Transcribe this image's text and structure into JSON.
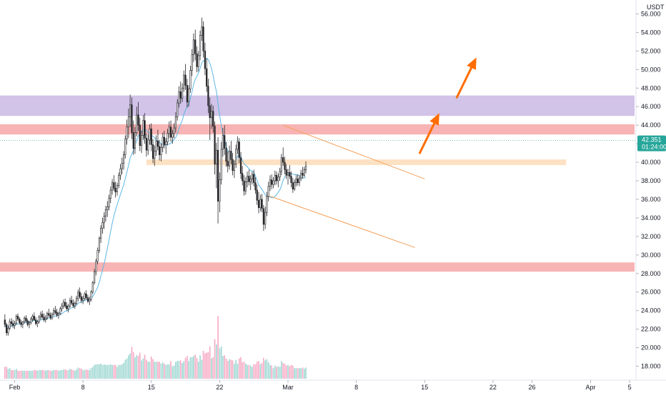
{
  "chart_data": {
    "type": "candlestick",
    "quote_unit": "USDT",
    "ylim": [
      16.5,
      57.5
    ],
    "x_range_days": [
      -0.5,
      64.5
    ],
    "grid": false,
    "colors": {
      "up": "#ffffff",
      "down": "#26262a",
      "wick": "#26262a",
      "ma_line": "#5db7e3",
      "volume_up": "#80cbc4",
      "volume_down": "#f48fb1",
      "resistance_zone": "#d2c3e8",
      "red_zone": "#f8b4b4",
      "support_zone": "#fde1c3",
      "trendline": "#f5a05a",
      "arrow": "#ff6d00",
      "price_badge": "#26a69a"
    },
    "y_ticks": [
      "18.000",
      "20.000",
      "22.000",
      "24.000",
      "26.000",
      "28.000",
      "30.000",
      "32.000",
      "34.000",
      "36.000",
      "38.000",
      "40.000",
      "42.000",
      "44.000",
      "46.000",
      "48.000",
      "50.000",
      "52.000",
      "54.000",
      "56.000"
    ],
    "y_tick_values": [
      18,
      20,
      22,
      24,
      26,
      28,
      30,
      32,
      34,
      36,
      38,
      40,
      42,
      44,
      46,
      48,
      50,
      52,
      54,
      56
    ],
    "x_labels": [
      {
        "label": "Feb",
        "day": 1
      },
      {
        "label": "8",
        "day": 8
      },
      {
        "label": "15",
        "day": 15
      },
      {
        "label": "22",
        "day": 22
      },
      {
        "label": "Mar",
        "day": 29
      },
      {
        "label": "8",
        "day": 36
      },
      {
        "label": "15",
        "day": 43
      },
      {
        "label": "22",
        "day": 50
      },
      {
        "label": "26",
        "day": 54
      },
      {
        "label": "Apr",
        "day": 60
      },
      {
        "label": "5",
        "day": 64
      }
    ],
    "current_price": {
      "value": "42.351",
      "countdown": "01:24:00",
      "level": 42.35
    },
    "zones": [
      {
        "name": "purple-resistance-zone",
        "y0": 45.0,
        "y1": 47.2,
        "x0_day": -0.5,
        "x1_day": "end"
      },
      {
        "name": "red-resistance-zone",
        "y0": 43.0,
        "y1": 44.1,
        "x0_day": -0.5,
        "x1_day": "end"
      },
      {
        "name": "support-zone",
        "y0": 39.7,
        "y1": 40.3,
        "x0_day": 14.5,
        "x1_day": 57.5
      },
      {
        "name": "red-support-zone",
        "y0": 28.2,
        "y1": 29.2,
        "x0_day": -0.5,
        "x1_day": "end"
      }
    ],
    "trendlines": [
      {
        "name": "upper-trendline",
        "x1_day": 28.5,
        "y1": 44.0,
        "x2_day": 43.0,
        "y2": 38.2
      },
      {
        "name": "lower-trendline",
        "x1_day": 27.0,
        "y1": 36.4,
        "x2_day": 42.0,
        "y2": 30.8
      }
    ],
    "arrows": [
      {
        "name": "arrow-1",
        "x1_day": 42.5,
        "y1": 41.0,
        "x2_day": 44.5,
        "y2": 45.3
      },
      {
        "name": "arrow-2",
        "x1_day": 46.3,
        "y1": 47.0,
        "x2_day": 48.3,
        "y2": 51.3
      }
    ],
    "candles_x": [],
    "candles_4h": [
      [
        0,
        23.0,
        23.6,
        22.2,
        22.5
      ],
      [
        0.17,
        22.5,
        22.7,
        21.3,
        21.6
      ],
      [
        0.33,
        21.6,
        22.4,
        21.3,
        22.1
      ],
      [
        0.5,
        22.1,
        23.1,
        21.9,
        22.8
      ],
      [
        0.67,
        22.8,
        23.2,
        22.3,
        22.6
      ],
      [
        0.83,
        22.6,
        23.0,
        22.1,
        22.4
      ],
      [
        1,
        22.4,
        22.9,
        22.0,
        22.6
      ],
      [
        1.17,
        22.6,
        23.6,
        22.5,
        23.4
      ],
      [
        1.33,
        23.4,
        23.7,
        22.9,
        23.1
      ],
      [
        1.5,
        23.1,
        23.3,
        22.5,
        22.7
      ],
      [
        1.67,
        22.7,
        23.0,
        22.2,
        22.5
      ],
      [
        1.83,
        22.5,
        22.9,
        22.1,
        22.8
      ],
      [
        2,
        22.8,
        23.4,
        22.6,
        23.2
      ],
      [
        2.17,
        23.2,
        23.5,
        22.7,
        22.9
      ],
      [
        2.33,
        22.9,
        23.1,
        22.3,
        22.5
      ],
      [
        2.5,
        22.5,
        22.9,
        22.1,
        22.7
      ],
      [
        2.67,
        22.7,
        23.3,
        22.5,
        23.1
      ],
      [
        2.83,
        23.1,
        23.6,
        22.8,
        23.4
      ],
      [
        3,
        23.4,
        23.8,
        22.9,
        23.0
      ],
      [
        3.17,
        23.0,
        23.3,
        22.4,
        22.6
      ],
      [
        3.33,
        22.6,
        23.0,
        22.2,
        22.8
      ],
      [
        3.5,
        22.8,
        23.5,
        22.6,
        23.3
      ],
      [
        3.67,
        23.3,
        23.9,
        23.0,
        23.6
      ],
      [
        3.83,
        23.6,
        24.0,
        23.1,
        23.3
      ],
      [
        4,
        23.3,
        23.7,
        22.8,
        23.0
      ],
      [
        4.17,
        23.0,
        23.5,
        22.7,
        23.2
      ],
      [
        4.33,
        23.2,
        23.9,
        23.0,
        23.7
      ],
      [
        4.5,
        23.7,
        24.2,
        23.3,
        23.5
      ],
      [
        4.67,
        23.5,
        23.8,
        23.0,
        23.2
      ],
      [
        4.83,
        23.2,
        23.8,
        23.0,
        23.6
      ],
      [
        5,
        23.6,
        24.3,
        23.4,
        24.0
      ],
      [
        5.17,
        24.0,
        24.5,
        23.6,
        23.8
      ],
      [
        5.33,
        23.8,
        24.2,
        23.3,
        23.5
      ],
      [
        5.5,
        23.5,
        23.9,
        23.1,
        23.7
      ],
      [
        5.67,
        23.7,
        24.4,
        23.5,
        24.2
      ],
      [
        5.83,
        24.2,
        24.8,
        23.9,
        24.5
      ],
      [
        6,
        24.5,
        25.2,
        24.2,
        24.9
      ],
      [
        6.17,
        24.9,
        25.3,
        24.3,
        24.5
      ],
      [
        6.33,
        24.5,
        24.9,
        24.0,
        24.2
      ],
      [
        6.5,
        24.2,
        24.7,
        23.8,
        24.5
      ],
      [
        6.67,
        24.5,
        25.4,
        24.3,
        25.1
      ],
      [
        6.83,
        25.1,
        25.6,
        24.6,
        24.8
      ],
      [
        7,
        24.8,
        25.2,
        24.3,
        24.5
      ],
      [
        7.17,
        24.5,
        25.0,
        24.2,
        24.8
      ],
      [
        7.33,
        24.8,
        25.6,
        24.6,
        25.3
      ],
      [
        7.5,
        25.3,
        26.3,
        25.0,
        26.0
      ],
      [
        7.67,
        26.0,
        26.5,
        25.3,
        25.5
      ],
      [
        7.83,
        25.5,
        25.9,
        24.8,
        25.1
      ],
      [
        8,
        25.1,
        25.6,
        24.7,
        25.3
      ],
      [
        8.17,
        25.3,
        26.0,
        25.1,
        25.8
      ],
      [
        8.33,
        25.8,
        26.2,
        25.2,
        25.4
      ],
      [
        8.5,
        25.4,
        25.7,
        24.8,
        25.0
      ],
      [
        8.67,
        25.0,
        25.5,
        24.6,
        25.2
      ],
      [
        8.83,
        25.2,
        26.2,
        25.0,
        26.0
      ],
      [
        9,
        26.0,
        27.2,
        25.8,
        27.0
      ],
      [
        9.17,
        27.0,
        28.5,
        26.8,
        28.2
      ],
      [
        9.33,
        28.2,
        29.6,
        27.8,
        29.3
      ],
      [
        9.5,
        29.3,
        30.8,
        29.0,
        30.5
      ],
      [
        9.67,
        30.5,
        32.0,
        30.2,
        31.8
      ],
      [
        9.83,
        31.8,
        33.2,
        31.3,
        32.9
      ],
      [
        10,
        32.9,
        34.0,
        32.3,
        33.5
      ],
      [
        10.17,
        33.5,
        34.6,
        32.8,
        34.2
      ],
      [
        10.33,
        34.2,
        35.3,
        33.6,
        34.9
      ],
      [
        10.5,
        34.9,
        35.8,
        34.1,
        35.2
      ],
      [
        10.67,
        35.2,
        36.5,
        34.8,
        36.1
      ],
      [
        10.83,
        36.1,
        37.4,
        35.6,
        37.0
      ],
      [
        11,
        37.0,
        38.2,
        36.5,
        37.8
      ],
      [
        11.17,
        37.8,
        38.6,
        36.9,
        37.2
      ],
      [
        11.33,
        37.2,
        37.9,
        36.2,
        36.8
      ],
      [
        11.5,
        36.8,
        37.8,
        36.4,
        37.5
      ],
      [
        11.67,
        37.5,
        38.9,
        37.2,
        38.6
      ],
      [
        11.83,
        38.6,
        39.8,
        38.1,
        39.3
      ],
      [
        12,
        39.3,
        40.5,
        38.7,
        39.9
      ],
      [
        12.17,
        39.9,
        41.2,
        39.2,
        40.8
      ],
      [
        12.33,
        40.8,
        42.9,
        40.4,
        42.5
      ],
      [
        12.5,
        42.5,
        44.6,
        41.9,
        43.8
      ],
      [
        12.67,
        43.8,
        45.8,
        42.6,
        44.9
      ],
      [
        12.83,
        44.9,
        47.3,
        43.8,
        46.2
      ],
      [
        13,
        46.2,
        47.0,
        42.5,
        43.2
      ],
      [
        13.17,
        43.2,
        44.5,
        40.8,
        41.5
      ],
      [
        13.33,
        41.5,
        43.8,
        40.9,
        43.2
      ],
      [
        13.5,
        43.2,
        46.0,
        42.8,
        45.1
      ],
      [
        13.67,
        45.1,
        46.5,
        43.4,
        44.0
      ],
      [
        13.83,
        44.0,
        44.8,
        41.2,
        41.8
      ],
      [
        14,
        41.8,
        43.4,
        41.0,
        42.9
      ],
      [
        14.17,
        42.9,
        45.1,
        42.4,
        44.5
      ],
      [
        14.33,
        44.5,
        45.3,
        42.0,
        42.6
      ],
      [
        14.5,
        42.6,
        43.1,
        40.6,
        41.3
      ],
      [
        14.67,
        41.3,
        43.0,
        40.8,
        42.4
      ],
      [
        14.83,
        42.4,
        44.1,
        41.9,
        43.6
      ],
      [
        15,
        43.6,
        44.2,
        41.2,
        41.9
      ],
      [
        15.17,
        41.9,
        42.5,
        39.9,
        40.4
      ],
      [
        15.33,
        40.4,
        41.8,
        39.6,
        41.2
      ],
      [
        15.5,
        41.2,
        42.9,
        40.7,
        42.3
      ],
      [
        15.67,
        42.3,
        43.5,
        41.3,
        41.7
      ],
      [
        15.83,
        41.7,
        42.4,
        40.2,
        40.8
      ],
      [
        16,
        40.8,
        42.0,
        40.1,
        41.6
      ],
      [
        16.17,
        41.6,
        43.2,
        41.1,
        42.7
      ],
      [
        16.33,
        42.7,
        43.4,
        41.5,
        41.9
      ],
      [
        16.5,
        41.9,
        42.6,
        40.9,
        42.2
      ],
      [
        16.67,
        42.2,
        43.6,
        41.8,
        43.1
      ],
      [
        16.83,
        43.1,
        44.4,
        42.6,
        43.8
      ],
      [
        17,
        43.8,
        44.5,
        42.2,
        42.7
      ],
      [
        17.17,
        42.7,
        43.5,
        42.0,
        43.1
      ],
      [
        17.33,
        43.1,
        44.2,
        42.6,
        43.7
      ],
      [
        17.5,
        43.7,
        45.4,
        43.2,
        44.9
      ],
      [
        17.67,
        44.9,
        46.8,
        44.5,
        46.4
      ],
      [
        17.83,
        46.4,
        48.2,
        45.9,
        47.6
      ],
      [
        18,
        47.6,
        48.7,
        46.3,
        46.9
      ],
      [
        18.17,
        46.9,
        48.5,
        46.5,
        48.0
      ],
      [
        18.33,
        48.0,
        49.9,
        47.6,
        49.4
      ],
      [
        18.5,
        49.4,
        50.6,
        47.8,
        48.3
      ],
      [
        18.67,
        48.3,
        49.0,
        45.9,
        46.5
      ],
      [
        18.83,
        46.5,
        48.3,
        46.0,
        47.9
      ],
      [
        19,
        47.9,
        50.4,
        47.5,
        49.9
      ],
      [
        19.17,
        49.9,
        52.2,
        49.3,
        51.6
      ],
      [
        19.33,
        51.6,
        53.9,
        50.8,
        53.2
      ],
      [
        19.5,
        53.2,
        54.3,
        51.0,
        51.7
      ],
      [
        19.67,
        51.7,
        52.5,
        49.7,
        50.3
      ],
      [
        19.83,
        50.3,
        52.0,
        49.8,
        51.5
      ],
      [
        20,
        51.5,
        54.2,
        51.0,
        53.7
      ],
      [
        20.17,
        53.7,
        55.6,
        53.1,
        54.6
      ],
      [
        20.33,
        54.6,
        55.2,
        51.3,
        52.0
      ],
      [
        20.5,
        52.0,
        52.9,
        49.4,
        50.1
      ],
      [
        20.67,
        50.1,
        51.2,
        47.6,
        48.2
      ],
      [
        20.83,
        48.2,
        49.0,
        45.3,
        46.1
      ],
      [
        21,
        46.1,
        47.0,
        42.4,
        44.8
      ],
      [
        21.17,
        44.8,
        46.3,
        43.6,
        45.5
      ],
      [
        21.33,
        45.5,
        46.1,
        43.2,
        43.9
      ],
      [
        21.5,
        43.9,
        44.4,
        38.7,
        39.8
      ],
      [
        21.67,
        39.8,
        42.1,
        37.2,
        41.3
      ],
      [
        21.83,
        41.3,
        42.7,
        33.4,
        35.8
      ],
      [
        22,
        35.8,
        38.9,
        34.6,
        38.1
      ],
      [
        22.17,
        38.1,
        42.2,
        37.6,
        41.4
      ],
      [
        22.33,
        41.4,
        43.7,
        40.6,
        42.9
      ],
      [
        22.5,
        42.9,
        44.0,
        40.8,
        41.5
      ],
      [
        22.67,
        41.5,
        42.2,
        39.5,
        40.1
      ],
      [
        22.83,
        40.1,
        41.2,
        38.9,
        39.6
      ],
      [
        23,
        39.6,
        41.8,
        39.2,
        41.2
      ],
      [
        23.17,
        41.2,
        42.3,
        39.8,
        40.3
      ],
      [
        23.33,
        40.3,
        41.0,
        38.6,
        39.1
      ],
      [
        23.5,
        39.1,
        40.2,
        38.3,
        39.8
      ],
      [
        23.67,
        39.8,
        41.9,
        39.4,
        41.4
      ],
      [
        23.83,
        41.4,
        42.8,
        40.9,
        42.2
      ],
      [
        24,
        42.2,
        42.6,
        39.9,
        40.5
      ],
      [
        24.17,
        40.5,
        41.1,
        38.2,
        38.8
      ],
      [
        24.33,
        38.8,
        39.6,
        37.5,
        38.0
      ],
      [
        24.5,
        38.0,
        38.6,
        36.4,
        36.9
      ],
      [
        24.67,
        36.9,
        38.4,
        36.5,
        37.9
      ],
      [
        24.83,
        37.9,
        39.0,
        37.3,
        38.5
      ],
      [
        25,
        38.5,
        39.2,
        37.5,
        37.9
      ],
      [
        25.17,
        37.9,
        38.6,
        37.0,
        38.2
      ],
      [
        25.33,
        38.2,
        39.0,
        37.6,
        38.7
      ],
      [
        25.5,
        38.7,
        39.2,
        37.4,
        37.8
      ],
      [
        25.67,
        37.8,
        38.4,
        36.6,
        37.0
      ],
      [
        25.83,
        37.0,
        37.6,
        35.4,
        35.9
      ],
      [
        26,
        35.9,
        36.8,
        34.5,
        35.1
      ],
      [
        26.17,
        35.1,
        36.5,
        34.7,
        36.0
      ],
      [
        26.33,
        36.0,
        36.6,
        34.6,
        35.0
      ],
      [
        26.5,
        35.0,
        35.4,
        32.6,
        33.3
      ],
      [
        26.67,
        33.3,
        35.2,
        32.8,
        34.6
      ],
      [
        26.83,
        34.6,
        36.8,
        34.2,
        36.3
      ],
      [
        27,
        36.3,
        37.9,
        35.8,
        37.4
      ],
      [
        27.17,
        37.4,
        38.6,
        36.9,
        38.1
      ],
      [
        27.33,
        38.1,
        38.7,
        37.1,
        37.6
      ],
      [
        27.5,
        37.6,
        38.4,
        37.2,
        38.0
      ],
      [
        27.67,
        38.0,
        39.1,
        37.5,
        38.6
      ],
      [
        27.83,
        38.6,
        39.0,
        37.6,
        38.0
      ],
      [
        28,
        38.0,
        38.8,
        37.3,
        38.4
      ],
      [
        28.17,
        38.4,
        39.4,
        38.0,
        39.0
      ],
      [
        28.33,
        39.0,
        40.9,
        38.6,
        40.5
      ],
      [
        28.5,
        40.5,
        41.6,
        39.6,
        40.0
      ],
      [
        28.67,
        40.0,
        40.6,
        38.7,
        39.2
      ],
      [
        28.83,
        39.2,
        39.8,
        38.2,
        38.6
      ],
      [
        29,
        38.6,
        39.3,
        37.6,
        38.9
      ],
      [
        29.17,
        38.9,
        39.7,
        38.2,
        38.5
      ],
      [
        29.33,
        38.5,
        39.0,
        37.3,
        37.8
      ],
      [
        29.5,
        37.8,
        38.3,
        36.7,
        37.1
      ],
      [
        29.67,
        37.1,
        38.1,
        36.9,
        37.8
      ],
      [
        29.83,
        37.8,
        38.6,
        37.4,
        38.2
      ],
      [
        30,
        38.2,
        38.7,
        37.5,
        37.8
      ],
      [
        30.17,
        37.8,
        38.6,
        37.4,
        38.3
      ],
      [
        30.33,
        38.3,
        39.2,
        38.0,
        38.8
      ],
      [
        30.5,
        38.8,
        39.5,
        38.2,
        38.6
      ],
      [
        30.67,
        38.6,
        39.5,
        38.4,
        39.2
      ],
      [
        30.83,
        39.2,
        40.1,
        38.8,
        39.6
      ]
    ],
    "volumes": []
  }
}
